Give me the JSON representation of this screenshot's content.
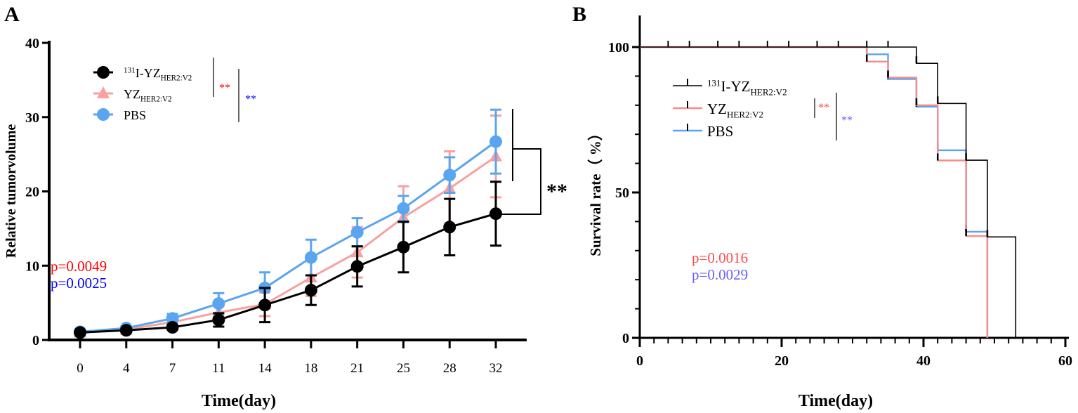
{
  "chart_data": [
    {
      "panel_label": "A",
      "type": "line",
      "xlabel": "Time(day)",
      "ylabel": "Relative tumorvolume",
      "ylim": [
        0,
        40
      ],
      "yticks": [
        0,
        10,
        20,
        30,
        40
      ],
      "categories": [
        "0",
        "4",
        "7",
        "11",
        "14",
        "18",
        "21",
        "25",
        "28",
        "32"
      ],
      "legend_placement": "top-left",
      "series": [
        {
          "name": "131I-YZHER2:V2",
          "label_sup": "131",
          "label_main": "I-YZ",
          "label_sub": "HER2:V2",
          "color": "#000000",
          "marker": "circle",
          "values": [
            1.0,
            1.3,
            1.7,
            2.7,
            4.7,
            6.7,
            9.9,
            12.5,
            15.2,
            17.0
          ],
          "errors": [
            0.1,
            0.2,
            0.3,
            0.9,
            2.3,
            2.0,
            2.7,
            3.4,
            3.8,
            4.3
          ]
        },
        {
          "name": "YZHER2:V2",
          "label_sup": "",
          "label_main": "YZ",
          "label_sub": "HER2:V2",
          "color": "#f7a1a1",
          "marker": "triangle",
          "values": [
            1.0,
            1.4,
            2.4,
            3.7,
            4.8,
            8.4,
            11.8,
            16.5,
            20.4,
            24.7
          ],
          "errors": [
            0.1,
            0.3,
            0.5,
            0.9,
            1.6,
            2.5,
            3.4,
            4.2,
            5.0,
            5.5
          ]
        },
        {
          "name": "PBS",
          "label_sup": "",
          "label_main": "PBS",
          "label_sub": "",
          "color": "#5aa5f0",
          "marker": "circle",
          "values": [
            1.1,
            1.6,
            2.9,
            4.9,
            7.0,
            11.1,
            14.5,
            17.7,
            22.2,
            26.7
          ],
          "errors": [
            0.1,
            0.2,
            0.6,
            1.4,
            2.1,
            2.4,
            1.9,
            1.7,
            2.4,
            4.3
          ]
        }
      ],
      "annotations": {
        "sig_red": "**",
        "sig_blue": "**",
        "sig_black": "**",
        "p_red": "p=0.0049",
        "p_blue": "p=0.0025",
        "color_red": "#ff0000",
        "color_blue": "#0000ff"
      }
    },
    {
      "panel_label": "B",
      "type": "line",
      "subtype": "kaplan-meier",
      "xlabel": "Time(day)",
      "ylabel": "Survival rate（ %）",
      "xlim": [
        0,
        60
      ],
      "ylim": [
        0,
        100
      ],
      "xticks": [
        0,
        20,
        40,
        60
      ],
      "yticks": [
        0,
        50,
        100
      ],
      "legend_placement": "top-left",
      "series": [
        {
          "name": "131I-YZHER2:V2",
          "label_sup": "131",
          "label_main": "I-YZ",
          "label_sub": "HER2:V2",
          "color": "#000000",
          "steps": [
            [
              0,
              100
            ],
            [
              39,
              94.4
            ],
            [
              42,
              80.6
            ],
            [
              46,
              61.1
            ],
            [
              49,
              34.7
            ],
            [
              53,
              0
            ]
          ],
          "censored": [
            4,
            7,
            11,
            14,
            18,
            21,
            25,
            28,
            32,
            35
          ]
        },
        {
          "name": "YZHER2:V2",
          "label_sup": "",
          "label_main": "YZ",
          "label_sub": "HER2:V2",
          "color": "#f78b8b",
          "steps": [
            [
              0,
              100
            ],
            [
              32,
              95
            ],
            [
              35,
              89.5
            ],
            [
              39,
              80
            ],
            [
              42,
              61
            ],
            [
              46,
              35
            ],
            [
              49,
              0
            ]
          ]
        },
        {
          "name": "PBS",
          "label_sup": "",
          "label_main": "PBS",
          "label_sub": "",
          "color": "#5aa5f0",
          "steps": [
            [
              0,
              100
            ],
            [
              32,
              97.5
            ],
            [
              35,
              89
            ],
            [
              39,
              79.5
            ],
            [
              42,
              64.5
            ],
            [
              46,
              36.5
            ],
            [
              49,
              0
            ]
          ]
        }
      ],
      "annotations": {
        "sig_red": "**",
        "sig_blue": "**",
        "p_red": "p=0.0016",
        "p_blue": "p=0.0029",
        "color_red": "#ff4a4a",
        "color_blue": "#6a5cff"
      }
    }
  ]
}
